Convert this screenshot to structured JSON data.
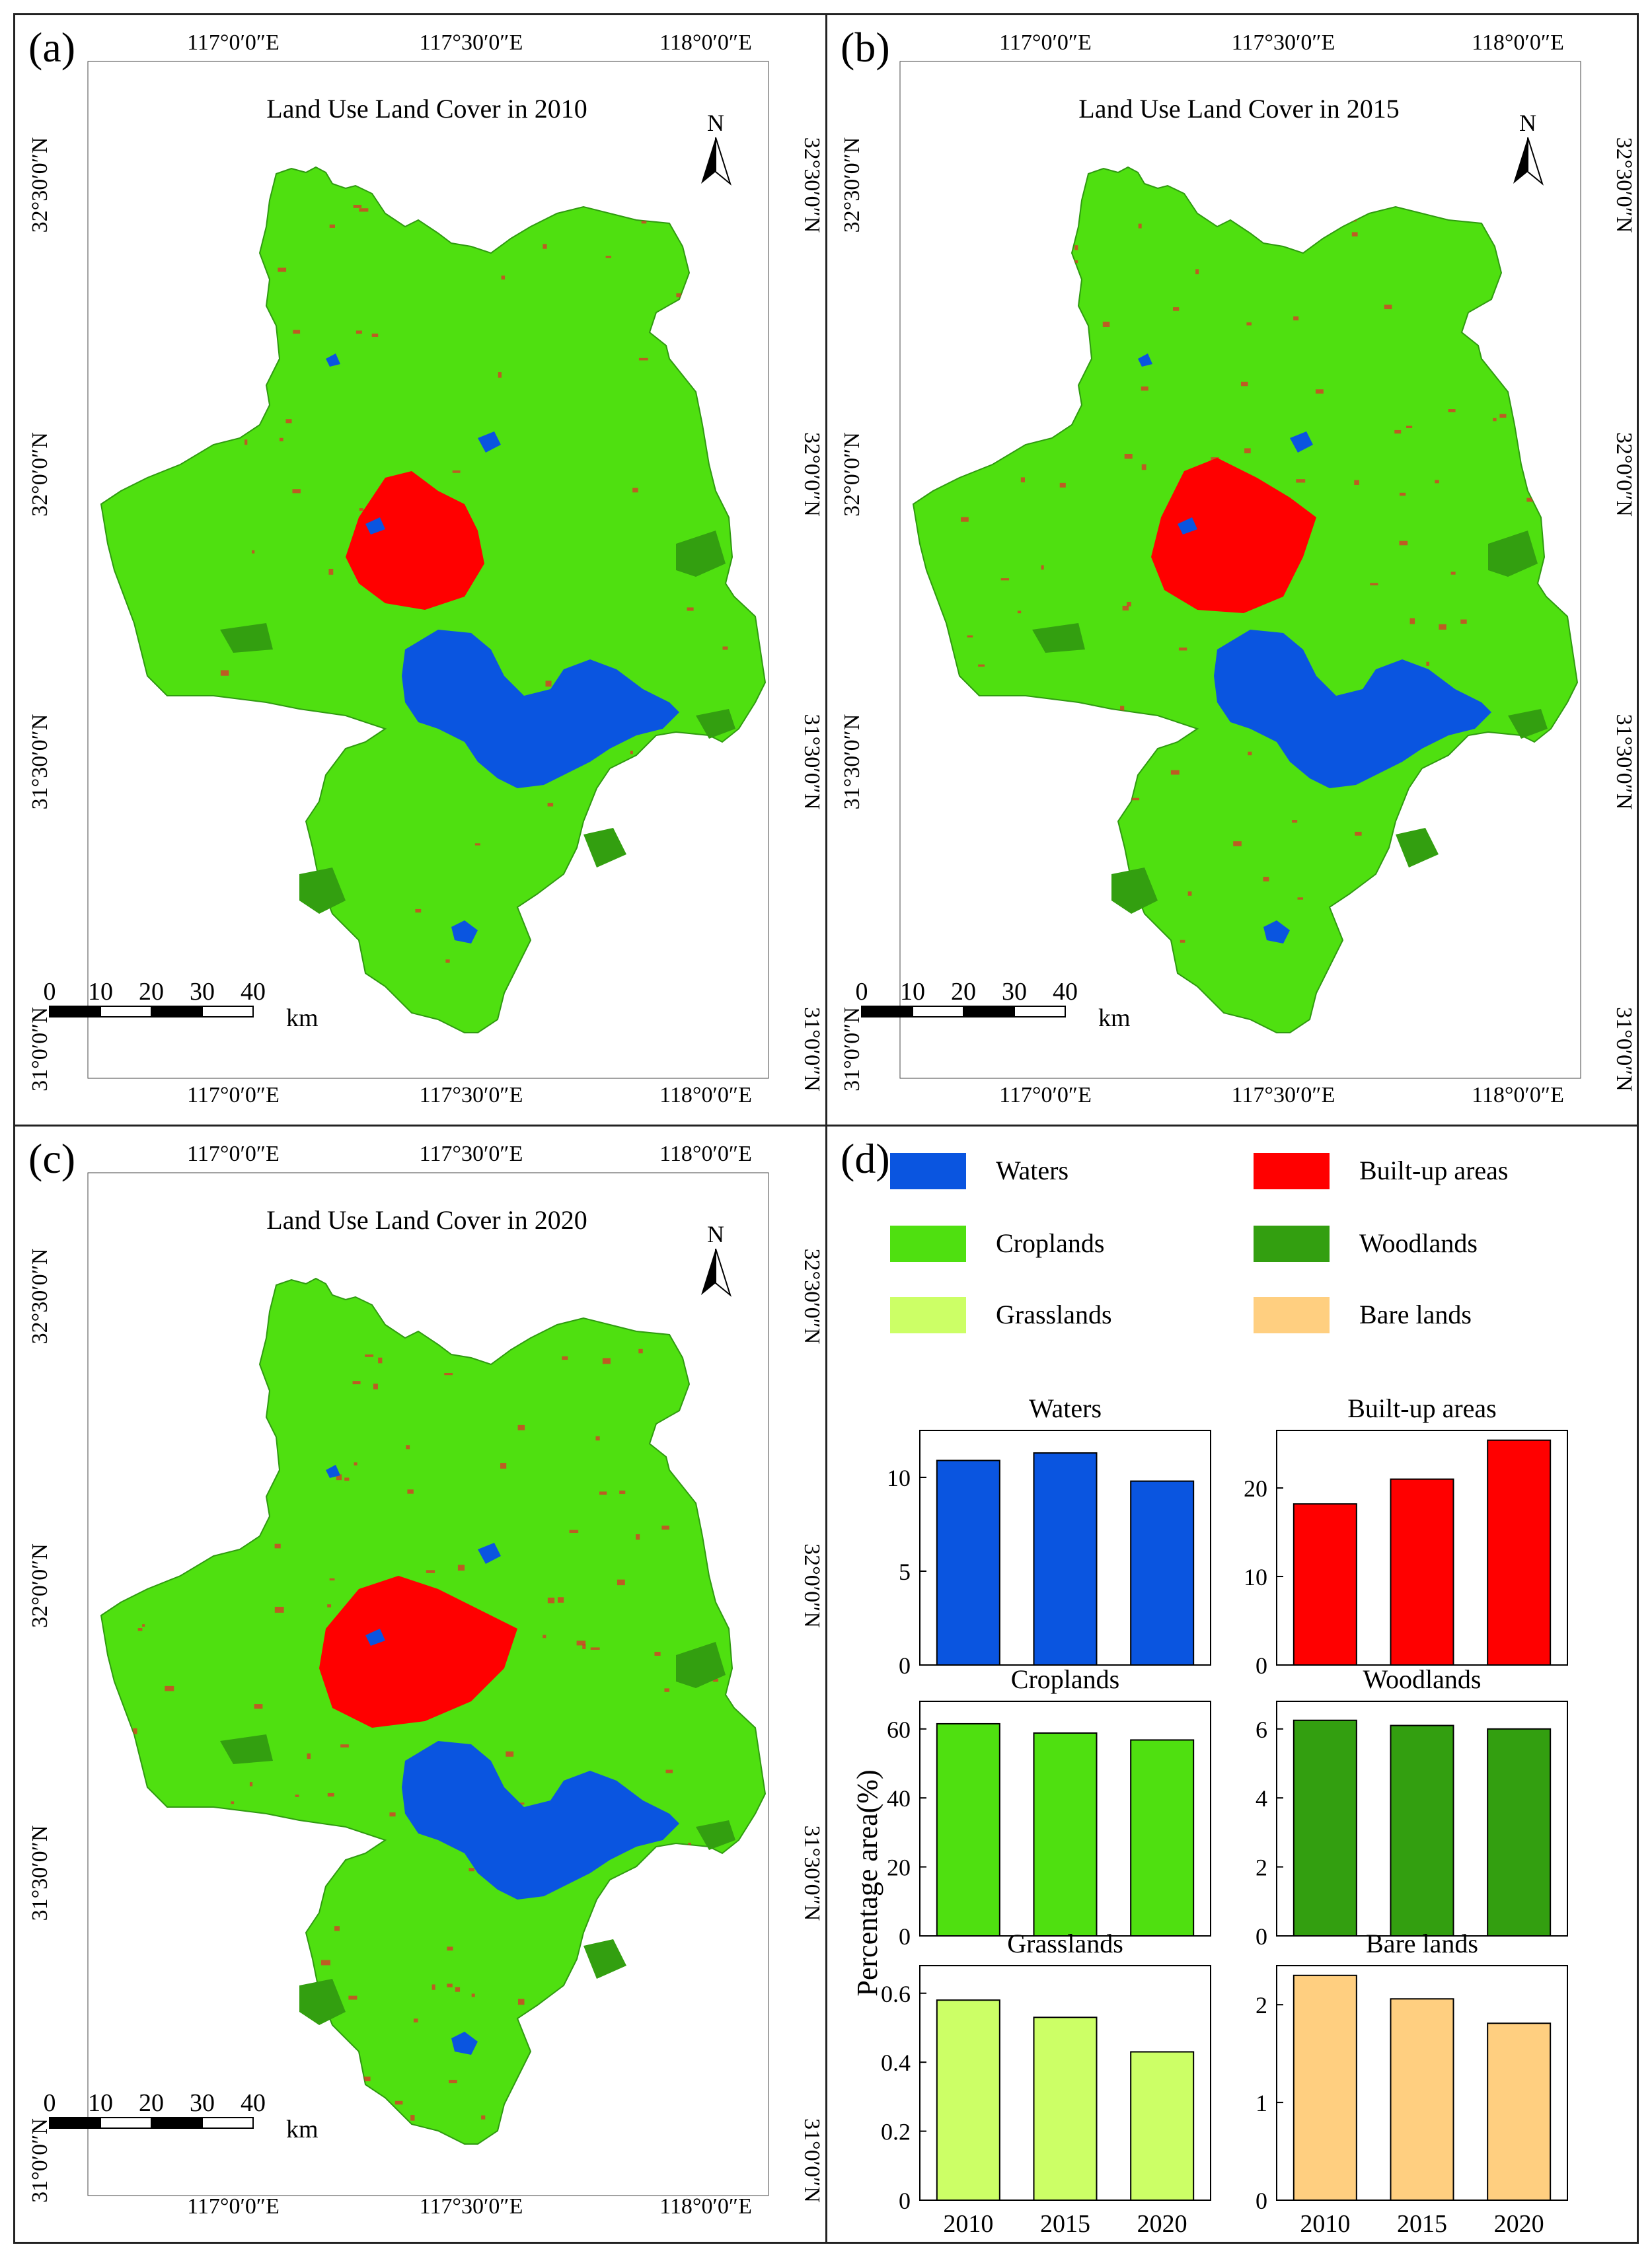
{
  "maps": [
    {
      "panel_label": "(a)",
      "title": "Land Use Land Cover in 2010",
      "year": 2010,
      "north": "N",
      "lon_ticks": [
        "117°0′0″E",
        "117°30′0″E",
        "118°0′0″E"
      ],
      "lat_ticks": [
        "32°30′0″N",
        "32°0′0″N",
        "31°30′0″N",
        "31°0′0″N"
      ],
      "scale_values": [
        "0",
        "10",
        "20",
        "30",
        "40"
      ],
      "scale_unit": "km"
    },
    {
      "panel_label": "(b)",
      "title": "Land Use Land Cover in 2015",
      "year": 2015,
      "north": "N",
      "lon_ticks": [
        "117°0′0″E",
        "117°30′0″E",
        "118°0′0″E"
      ],
      "lat_ticks": [
        "32°30′0″N",
        "32°0′0″N",
        "31°30′0″N",
        "31°0′0″N"
      ],
      "scale_values": [
        "0",
        "10",
        "20",
        "30",
        "40"
      ],
      "scale_unit": "km"
    },
    {
      "panel_label": "(c)",
      "title": "Land Use Land Cover in 2020",
      "year": 2020,
      "north": "N",
      "lon_ticks": [
        "117°0′0″E",
        "117°30′0″E",
        "118°0′0″E"
      ],
      "lat_ticks": [
        "32°30′0″N",
        "32°0′0″N",
        "31°30′0″N",
        "31°0′0″N"
      ],
      "scale_values": [
        "0",
        "10",
        "20",
        "30",
        "40"
      ],
      "scale_unit": "km"
    }
  ],
  "legend": {
    "panel_label": "(d)",
    "items": [
      {
        "label": "Waters",
        "color": "#0a55e0"
      },
      {
        "label": "Built-up areas",
        "color": "#ff0000"
      },
      {
        "label": "Croplands",
        "color": "#4fe010"
      },
      {
        "label": "Woodlands",
        "color": "#339f10"
      },
      {
        "label": "Grasslands",
        "color": "#ccff66"
      },
      {
        "label": "Bare lands",
        "color": "#ffcf80"
      }
    ]
  },
  "chart_data": {
    "type": "bar",
    "ylabel": "Percentage area(%)",
    "categories": [
      "2010",
      "2015",
      "2020"
    ],
    "subplots": [
      {
        "title": "Waters",
        "color": "#0a55e0",
        "values": [
          10.9,
          11.3,
          9.8
        ],
        "ylim": [
          0,
          12.5
        ],
        "yticks": [
          0,
          5,
          10
        ]
      },
      {
        "title": "Built-up areas",
        "color": "#ff0000",
        "values": [
          18.2,
          21.0,
          25.4
        ],
        "ylim": [
          0,
          26.5
        ],
        "yticks": [
          0,
          10,
          20
        ]
      },
      {
        "title": "Croplands",
        "color": "#4fe010",
        "values": [
          61.5,
          58.8,
          56.8
        ],
        "ylim": [
          0,
          68
        ],
        "yticks": [
          0,
          20,
          40,
          60
        ]
      },
      {
        "title": "Woodlands",
        "color": "#339f10",
        "values": [
          6.25,
          6.1,
          6.0
        ],
        "ylim": [
          0,
          6.8
        ],
        "yticks": [
          0,
          2,
          4,
          6
        ]
      },
      {
        "title": "Grasslands",
        "color": "#ccff66",
        "values": [
          0.58,
          0.53,
          0.43
        ],
        "ylim": [
          0,
          0.68
        ],
        "yticks": [
          0,
          0.2,
          0.4,
          0.6
        ]
      },
      {
        "title": "Bare lands",
        "color": "#ffcf80",
        "values": [
          2.3,
          2.06,
          1.81
        ],
        "ylim": [
          0,
          2.4
        ],
        "yticks": [
          0,
          1,
          2
        ]
      }
    ]
  }
}
